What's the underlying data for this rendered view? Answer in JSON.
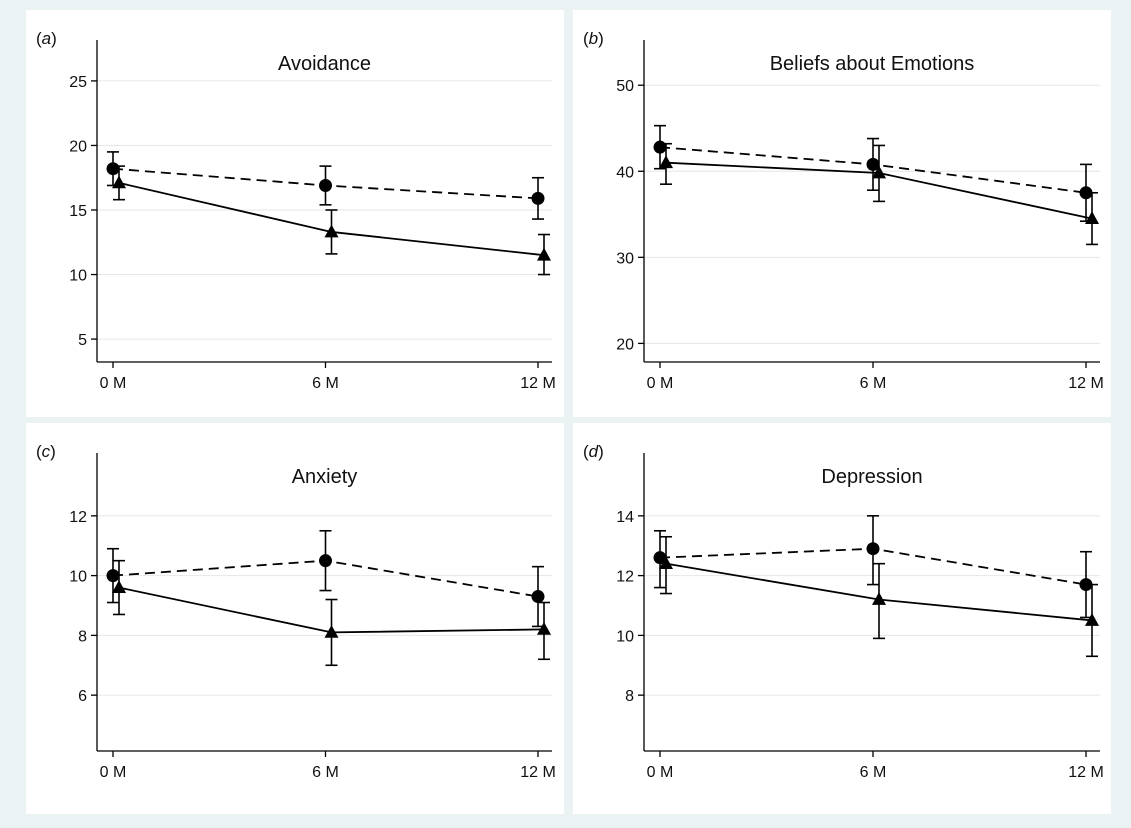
{
  "chart_data": [
    {
      "type": "line",
      "panel_label": "a",
      "title": "Avoidance",
      "x": [
        "0 M",
        "6 M",
        "12 M"
      ],
      "x_values": [
        0,
        6,
        12
      ],
      "ylim": [
        4,
        26
      ],
      "yticks": [
        5,
        10,
        15,
        20,
        25
      ],
      "grid": true,
      "series": [
        {
          "style": "dashed",
          "marker": "circle",
          "values": [
            18.2,
            16.9,
            15.9
          ],
          "ci_low": [
            16.9,
            15.4,
            14.3
          ],
          "ci_high": [
            19.5,
            18.4,
            17.5
          ]
        },
        {
          "style": "solid",
          "marker": "triangle",
          "values": [
            17.1,
            13.3,
            11.5
          ],
          "ci_low": [
            15.8,
            11.6,
            10.0
          ],
          "ci_high": [
            18.4,
            15.0,
            13.1
          ]
        }
      ]
    },
    {
      "type": "line",
      "panel_label": "b",
      "title": "Beliefs about Emotions",
      "x": [
        "0 M",
        "6 M",
        "12 M"
      ],
      "x_values": [
        0,
        6,
        12
      ],
      "ylim": [
        19,
        52
      ],
      "yticks": [
        20,
        30,
        40,
        50
      ],
      "grid": true,
      "series": [
        {
          "style": "dashed",
          "marker": "circle",
          "values": [
            42.8,
            40.8,
            37.5
          ],
          "ci_low": [
            40.3,
            37.8,
            34.2
          ],
          "ci_high": [
            45.3,
            43.8,
            40.8
          ]
        },
        {
          "style": "solid",
          "marker": "triangle",
          "values": [
            41.0,
            39.8,
            34.5
          ],
          "ci_low": [
            38.5,
            36.5,
            31.5
          ],
          "ci_high": [
            43.2,
            43.0,
            37.5
          ]
        }
      ]
    },
    {
      "type": "line",
      "panel_label": "c",
      "title": "Anxiety",
      "x": [
        "0 M",
        "6 M",
        "12 M"
      ],
      "x_values": [
        0,
        6,
        12
      ],
      "ylim": [
        4.6,
        13.4
      ],
      "yticks": [
        6,
        8,
        10,
        12
      ],
      "grid": true,
      "series": [
        {
          "style": "dashed",
          "marker": "circle",
          "values": [
            10.0,
            10.5,
            9.3
          ],
          "ci_low": [
            9.1,
            9.5,
            8.3
          ],
          "ci_high": [
            10.9,
            11.5,
            10.3
          ]
        },
        {
          "style": "solid",
          "marker": "triangle",
          "values": [
            9.6,
            8.1,
            8.2
          ],
          "ci_low": [
            8.7,
            7.0,
            7.2
          ],
          "ci_high": [
            10.5,
            9.2,
            9.1
          ]
        }
      ]
    },
    {
      "type": "line",
      "panel_label": "d",
      "title": "Depression",
      "x": [
        "0 M",
        "6 M",
        "12 M"
      ],
      "x_values": [
        0,
        6,
        12
      ],
      "ylim": [
        6.6,
        15.4
      ],
      "yticks": [
        8,
        10,
        12,
        14
      ],
      "grid": true,
      "series": [
        {
          "style": "dashed",
          "marker": "circle",
          "values": [
            12.6,
            12.9,
            11.7
          ],
          "ci_low": [
            11.6,
            11.7,
            10.6
          ],
          "ci_high": [
            13.5,
            14.0,
            12.8
          ]
        },
        {
          "style": "solid",
          "marker": "triangle",
          "values": [
            12.4,
            11.2,
            10.5
          ],
          "ci_low": [
            11.4,
            9.9,
            9.3
          ],
          "ci_high": [
            13.3,
            12.4,
            11.7
          ]
        }
      ]
    }
  ]
}
